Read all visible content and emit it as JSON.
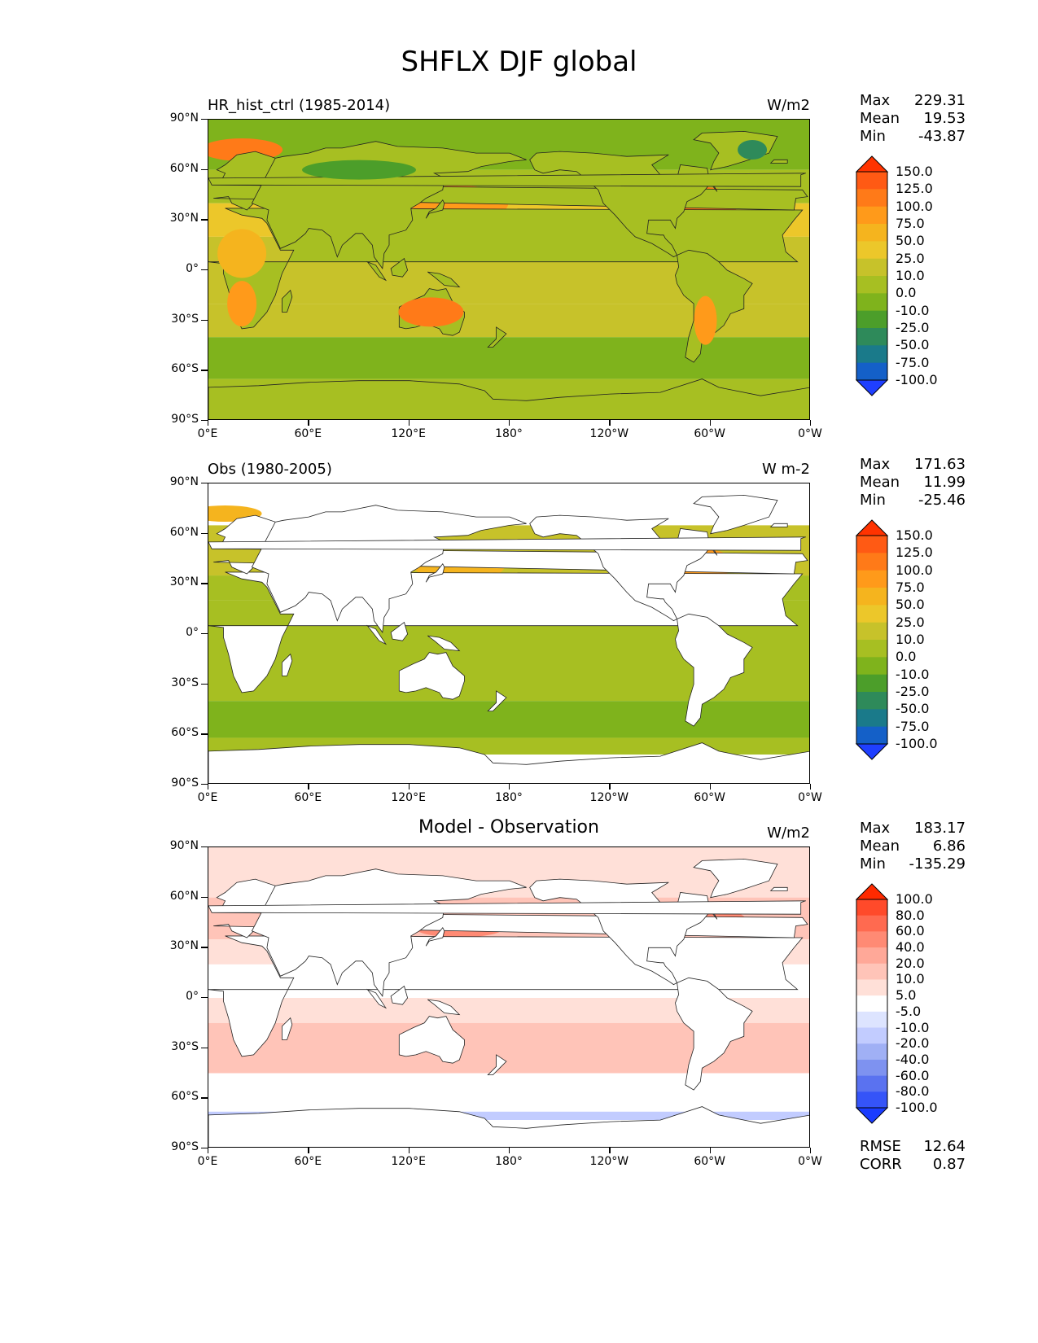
{
  "title": "SHFLX DJF global",
  "axes": {
    "lat_labels": [
      "90°N",
      "60°N",
      "30°N",
      "0°",
      "30°S",
      "60°S",
      "90°S"
    ],
    "lon_labels": [
      "0°E",
      "60°E",
      "120°E",
      "180°",
      "120°W",
      "60°W",
      "0°W"
    ]
  },
  "panels": [
    {
      "title": "HR_hist_ctrl (1985-2014)",
      "title_position": "left",
      "units": "W/m2",
      "stats": [
        {
          "label": "Max",
          "value": "229.31"
        },
        {
          "label": "Mean",
          "value": "19.53"
        },
        {
          "label": "Min",
          "value": "-43.87"
        }
      ],
      "colorbar_labels": [
        "150.0",
        "125.0",
        "100.0",
        "75.0",
        "50.0",
        "25.0",
        "10.0",
        "0.0",
        "-10.0",
        "-25.0",
        "-50.0",
        "-75.0",
        "-100.0"
      ],
      "colorbar_colors": [
        "#ff3300",
        "#ff5a14",
        "#ff7a18",
        "#ff9a1a",
        "#f5b41e",
        "#ecc72a",
        "#c7c22a",
        "#a7bf22",
        "#7fb31c",
        "#4c9e2a",
        "#2e8a5a",
        "#1a7a8a",
        "#1460c8",
        "#1f3fff"
      ],
      "field_type": "model"
    },
    {
      "title": "Obs (1980-2005)",
      "title_position": "left",
      "units": "W m-2",
      "stats": [
        {
          "label": "Max",
          "value": "171.63"
        },
        {
          "label": "Mean",
          "value": "11.99"
        },
        {
          "label": "Min",
          "value": "-25.46"
        }
      ],
      "colorbar_labels": [
        "150.0",
        "125.0",
        "100.0",
        "75.0",
        "50.0",
        "25.0",
        "10.0",
        "0.0",
        "-10.0",
        "-25.0",
        "-50.0",
        "-75.0",
        "-100.0"
      ],
      "colorbar_colors": [
        "#ff3300",
        "#ff5a14",
        "#ff7a18",
        "#ff9a1a",
        "#f5b41e",
        "#ecc72a",
        "#c7c22a",
        "#a7bf22",
        "#7fb31c",
        "#4c9e2a",
        "#2e8a5a",
        "#1a7a8a",
        "#1460c8",
        "#1f3fff"
      ],
      "field_type": "obs"
    },
    {
      "title": "Model - Observation",
      "title_position": "center",
      "units": "W/m2",
      "stats": [
        {
          "label": "Max",
          "value": "183.17"
        },
        {
          "label": "Mean",
          "value": "6.86"
        },
        {
          "label": "Min",
          "value": "-135.29"
        }
      ],
      "colorbar_labels": [
        "100.0",
        "80.0",
        "60.0",
        "40.0",
        "20.0",
        "10.0",
        "5.0",
        "-5.0",
        "-10.0",
        "-20.0",
        "-40.0",
        "-60.0",
        "-80.0",
        "-100.0"
      ],
      "colorbar_colors": [
        "#ff2a00",
        "#ff4a2a",
        "#ff6a50",
        "#ff8a74",
        "#ffa898",
        "#ffc4b8",
        "#ffe0d8",
        "#ffffff",
        "#dde4ff",
        "#c2ccff",
        "#a0b0f5",
        "#7e92f0",
        "#5a72f0",
        "#3554f8",
        "#1a3cff"
      ],
      "field_type": "diff",
      "bottom_stats": [
        {
          "label": "RMSE",
          "value": "12.64"
        },
        {
          "label": "CORR",
          "value": "0.87"
        }
      ]
    }
  ]
}
